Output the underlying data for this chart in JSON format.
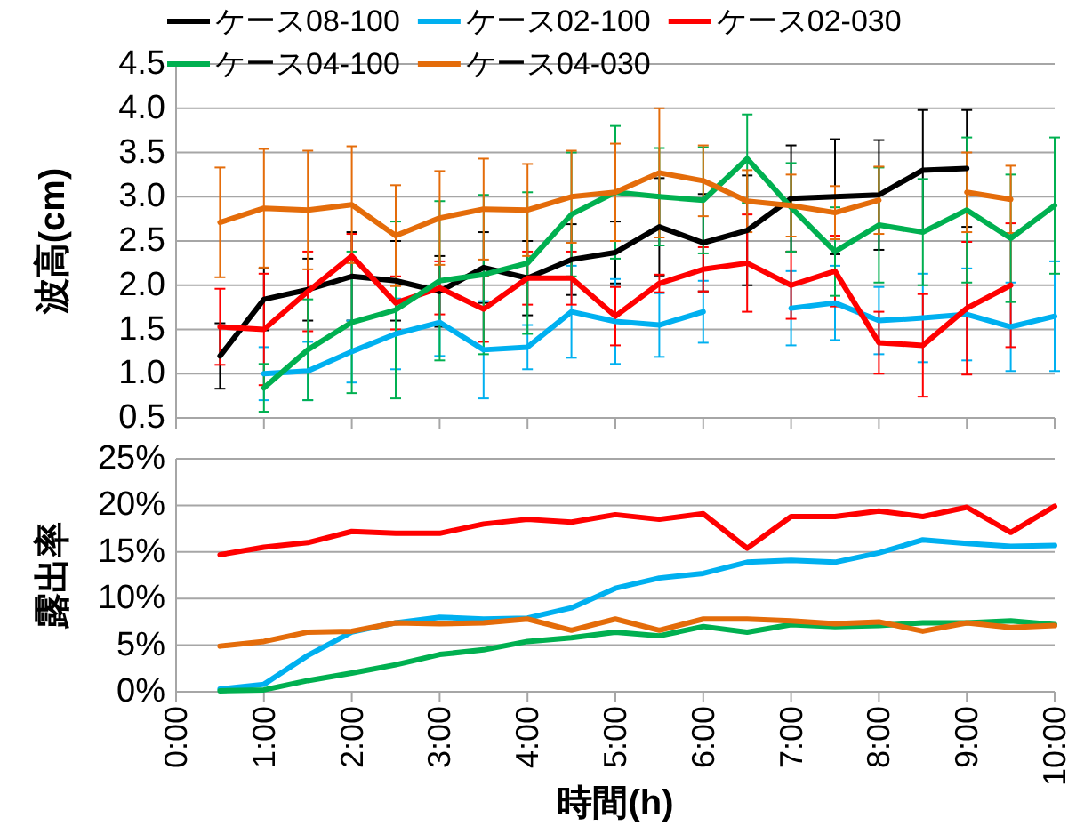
{
  "chart_data": [
    {
      "type": "line",
      "ylabel": "波高(cm)",
      "x": [
        0.5,
        1,
        1.5,
        2,
        2.5,
        3,
        3.5,
        4,
        4.5,
        5,
        5.5,
        6,
        6.5,
        7,
        7.5,
        8,
        8.5,
        9,
        9.5,
        10
      ],
      "xlim": [
        0,
        10
      ],
      "xticks": [
        {
          "value": 0,
          "label": null
        },
        {
          "value": 1,
          "label": null
        },
        {
          "value": 2,
          "label": null
        },
        {
          "value": 3,
          "label": null
        },
        {
          "value": 4,
          "label": null
        },
        {
          "value": 5,
          "label": null
        },
        {
          "value": 6,
          "label": null
        },
        {
          "value": 7,
          "label": null
        },
        {
          "value": 8,
          "label": null
        },
        {
          "value": 9,
          "label": null
        },
        {
          "value": 10,
          "label": null
        }
      ],
      "ylim": [
        0.5,
        4.5
      ],
      "yticks": [
        {
          "value": 0.5,
          "label": "0.5"
        },
        {
          "value": 1,
          "label": "1.0"
        },
        {
          "value": 1.5,
          "label": "1.5"
        },
        {
          "value": 2,
          "label": "2.0"
        },
        {
          "value": 2.5,
          "label": "2.5"
        },
        {
          "value": 3,
          "label": "3.0"
        },
        {
          "value": 3.5,
          "label": "3.5"
        },
        {
          "value": 4,
          "label": "4.0"
        },
        {
          "value": 4.5,
          "label": "4.5"
        }
      ],
      "tick_labels": "y",
      "grid": "y",
      "legend": "top",
      "series": [
        {
          "name": "ケース08-100",
          "color": "#000000",
          "values": [
            1.2,
            1.84,
            1.95,
            2.1,
            2.05,
            1.93,
            2.2,
            2.08,
            2.29,
            2.37,
            2.66,
            2.48,
            2.62,
            2.98,
            3.0,
            3.02,
            3.3,
            3.32,
            null,
            null
          ],
          "errors": [
            0.37,
            0.35,
            0.35,
            0.5,
            0.45,
            0.4,
            0.4,
            0.42,
            0.4,
            0.35,
            0.55,
            0.55,
            0.62,
            0.6,
            0.65,
            0.62,
            0.68,
            0.66,
            null,
            null
          ]
        },
        {
          "name": "ケース02-100",
          "color": "#00b0f0",
          "values": [
            null,
            1.0,
            1.03,
            1.25,
            1.45,
            1.58,
            1.27,
            1.3,
            1.7,
            1.59,
            1.55,
            1.7,
            null,
            1.74,
            1.8,
            1.6,
            1.63,
            1.67,
            1.53,
            1.65
          ],
          "errors": [
            null,
            0.3,
            0.33,
            0.35,
            0.4,
            0.38,
            0.55,
            0.25,
            0.52,
            0.48,
            0.36,
            0.35,
            null,
            0.42,
            0.42,
            0.38,
            0.5,
            0.52,
            0.5,
            0.62
          ]
        },
        {
          "name": "ケース02-030",
          "color": "#ff0000",
          "values": [
            1.53,
            1.5,
            1.93,
            2.33,
            1.8,
            1.97,
            1.73,
            2.08,
            2.08,
            1.65,
            2.02,
            2.18,
            2.25,
            2.0,
            2.16,
            1.35,
            1.32,
            1.74,
            2.0,
            null
          ],
          "errors": [
            0.43,
            0.63,
            0.45,
            0.25,
            0.3,
            0.3,
            0.37,
            0.3,
            0.3,
            0.33,
            0.1,
            0.25,
            0.55,
            0.38,
            0.4,
            0.35,
            0.58,
            0.75,
            0.7,
            null
          ]
        },
        {
          "name": "ケース04-100",
          "color": "#00b050",
          "values": [
            null,
            0.84,
            1.27,
            1.58,
            1.72,
            2.05,
            2.12,
            2.25,
            2.8,
            3.05,
            3.0,
            2.96,
            3.43,
            2.88,
            2.38,
            2.68,
            2.6,
            2.85,
            2.53,
            2.9
          ],
          "errors": [
            null,
            0.27,
            0.57,
            0.8,
            1.0,
            0.9,
            0.9,
            0.8,
            0.7,
            0.75,
            0.55,
            0.6,
            0.5,
            0.5,
            0.5,
            0.65,
            0.6,
            0.82,
            0.72,
            0.77
          ]
        },
        {
          "name": "ケース04-030",
          "color": "#e46c0a",
          "values": [
            2.71,
            2.87,
            2.85,
            2.91,
            2.56,
            2.76,
            2.86,
            2.85,
            3.0,
            3.05,
            3.27,
            3.18,
            2.95,
            2.9,
            2.82,
            2.96,
            null,
            3.05,
            2.97,
            null
          ],
          "errors": [
            0.62,
            0.67,
            0.67,
            0.66,
            0.57,
            0.53,
            0.57,
            0.52,
            0.52,
            0.55,
            0.73,
            0.4,
            0.35,
            0.35,
            0.3,
            0.38,
            null,
            0.45,
            0.38,
            null
          ]
        }
      ]
    },
    {
      "type": "line",
      "ylabel": "露出率",
      "xlabel": "時間(h)",
      "x": [
        0.5,
        1,
        1.5,
        2,
        2.5,
        3,
        3.5,
        4,
        4.5,
        5,
        5.5,
        6,
        6.5,
        7,
        7.5,
        8,
        8.5,
        9,
        9.5,
        10
      ],
      "xlim": [
        0,
        10
      ],
      "xticks": [
        {
          "value": 0,
          "label": "0:00"
        },
        {
          "value": 1,
          "label": "1:00"
        },
        {
          "value": 2,
          "label": "2:00"
        },
        {
          "value": 3,
          "label": "3:00"
        },
        {
          "value": 4,
          "label": "4:00"
        },
        {
          "value": 5,
          "label": "5:00"
        },
        {
          "value": 6,
          "label": "6:00"
        },
        {
          "value": 7,
          "label": "7:00"
        },
        {
          "value": 8,
          "label": "8:00"
        },
        {
          "value": 9,
          "label": "9:00"
        },
        {
          "value": 10,
          "label": "10:00"
        }
      ],
      "ylim": [
        0,
        25
      ],
      "yticks": [
        {
          "value": 0,
          "label": "0%"
        },
        {
          "value": 5,
          "label": "5%"
        },
        {
          "value": 10,
          "label": "10%"
        },
        {
          "value": 15,
          "label": "15%"
        },
        {
          "value": 20,
          "label": "20%"
        },
        {
          "value": 25,
          "label": "25%"
        }
      ],
      "grid": "y",
      "series": [
        {
          "color": "#ff0000",
          "values": [
            14.7,
            15.5,
            16.0,
            17.2,
            17.0,
            17.0,
            18.0,
            18.5,
            18.2,
            19.0,
            18.5,
            19.1,
            15.4,
            18.8,
            18.8,
            19.4,
            18.8,
            19.8,
            17.1,
            19.9
          ]
        },
        {
          "color": "#00b0f0",
          "values": [
            0.3,
            0.8,
            3.9,
            6.4,
            7.4,
            8.0,
            7.8,
            7.9,
            9.0,
            11.1,
            12.2,
            12.7,
            13.9,
            14.1,
            13.9,
            14.9,
            16.3,
            15.9,
            15.6,
            15.7
          ]
        },
        {
          "color": "#00b050",
          "values": [
            0.1,
            0.2,
            1.2,
            2.0,
            2.9,
            4.0,
            4.5,
            5.4,
            5.8,
            6.4,
            6.0,
            7.0,
            6.4,
            7.2,
            7.0,
            7.1,
            7.4,
            7.4,
            7.6,
            7.2
          ]
        },
        {
          "color": "#e46c0a",
          "values": [
            4.9,
            5.4,
            6.4,
            6.5,
            7.4,
            7.3,
            7.4,
            7.8,
            6.6,
            7.8,
            6.6,
            7.8,
            7.8,
            7.6,
            7.3,
            7.5,
            6.5,
            7.4,
            6.9,
            7.1
          ]
        }
      ]
    }
  ]
}
